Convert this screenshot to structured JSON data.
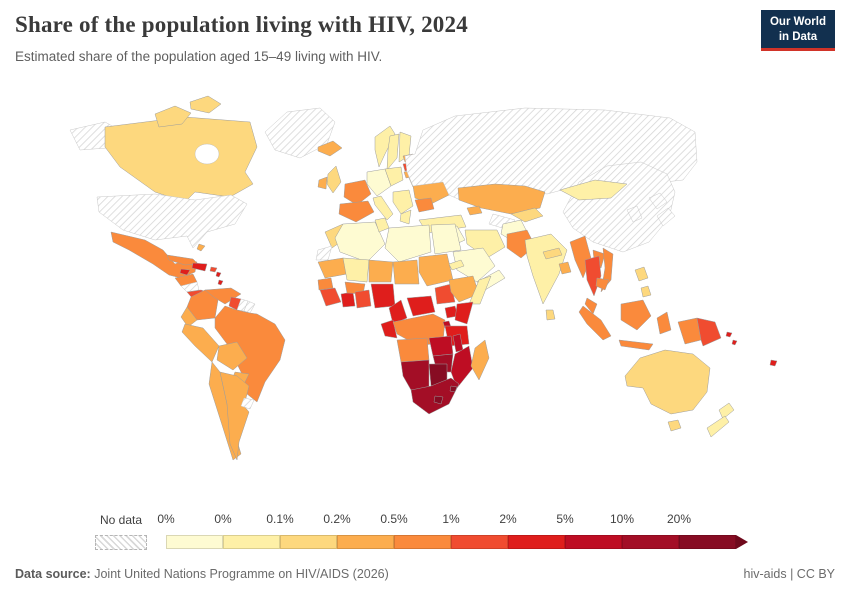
{
  "header": {
    "title": "Share of the population living with HIV, 2024",
    "subtitle": "Estimated share of the population aged 15–49 living with HIV.",
    "logo": {
      "line1": "Our World",
      "line2": "in Data",
      "bg_color": "#12304f",
      "accent_color": "#d13328"
    }
  },
  "chart_data": {
    "type": "choropleth-map",
    "title": "Share of the population living with HIV, 2024",
    "subtitle": "Estimated share of the population aged 15–49 living with HIV.",
    "year": 2024,
    "unit": "%",
    "legend": {
      "position": "bottom",
      "no_data_label": "No data",
      "edge_labels": [
        "0%",
        "0%",
        "0.1%",
        "0.2%",
        "0.5%",
        "1%",
        "2%",
        "5%",
        "10%",
        "20%"
      ],
      "open_ended_upper": true,
      "colors": [
        "#fefbd2",
        "#fef0a7",
        "#fdd87e",
        "#fcad4e",
        "#fa8a3c",
        "#f04c30",
        "#df1e1c",
        "#be0d23",
        "#a30e26",
        "#870c23"
      ],
      "arrow_color": "#6f091c",
      "no_data_fill": "diagonal gray hatch on white"
    },
    "bin_ranges": [
      "<0.05%",
      "0.05–0.1%",
      "0.1–0.2%",
      "0.2–0.5%",
      "0.5–1%",
      "1–2%",
      "2–5%",
      "5–10%",
      "10–20%",
      ">20%"
    ],
    "country_bins": {
      "greenland": -1,
      "alaska-united-states": -1,
      "canada": 2,
      "canadian-arctic-islands": 2,
      "united-states": -1,
      "mexico": 4,
      "guatemala-honduras": 4,
      "nicaragua": -1,
      "costa-rica-panama": 5,
      "cuba": 4,
      "bahamas": 3,
      "jamaica": 6,
      "hispaniola": 6,
      "puerto-rico": 5,
      "lesser-antilles": 6,
      "colombia": 4,
      "venezuela": 4,
      "guyana": 5,
      "suriname": -1,
      "french-guiana": -1,
      "brazil": 4,
      "ecuador": 3,
      "peru": 3,
      "bolivia": 3,
      "paraguay": 3,
      "chile": 3,
      "argentina": 3,
      "uruguay": -1,
      "iceland": 3,
      "ireland": 3,
      "united-kingdom": 2,
      "norway": 1,
      "sweden": 1,
      "finland": 1,
      "denmark": 1,
      "central-europe": 0,
      "poland": 1,
      "france": 4,
      "spain-portugal": 4,
      "italy": 1,
      "balkans": 1,
      "greece": 1,
      "estonia": 3,
      "latvia": 5,
      "lithuania": 3,
      "belarus": 1,
      "ukraine": 3,
      "romania": 4,
      "turkey": 1,
      "russia": -1,
      "kazakhstan": 3,
      "uzbekistan": 2,
      "turkmenistan": -1,
      "caucasus": 3,
      "syria-iraq": 0,
      "lebanon-israel": 5,
      "iran": 1,
      "saudi-arabia": 0,
      "yemen-oman": 0,
      "afghanistan": 0,
      "pakistan": 4,
      "india": 1,
      "nepal": 2,
      "bangladesh": 3,
      "sri-lanka": 2,
      "china": -1,
      "mongolia": 1,
      "korea": -1,
      "japan": -1,
      "japan-south": -1,
      "myanmar": 4,
      "thailand": 5,
      "laos": 4,
      "vietnam": 4,
      "cambodia": 4,
      "malaysia": 4,
      "sumatra-indonesia": 4,
      "java-indonesia": 4,
      "borneo": 4,
      "sulawesi-indonesia": 4,
      "philippines": 2,
      "west-papua-indonesia": 4,
      "papua-new-guinea": 5,
      "solomon-islands": 6,
      "fiji": 6,
      "australia": 2,
      "tasmania": 2,
      "new-zealand-north": 1,
      "new-zealand-south": 1,
      "morocco": 2,
      "western-sahara": -1,
      "algeria": 0,
      "tunisia": 1,
      "libya": 0,
      "egypt": 0,
      "mauritania": 3,
      "mali": 1,
      "niger": 3,
      "chad": 3,
      "sudan": 3,
      "eritrea": 1,
      "senegal": 4,
      "guinea": 5,
      "cote-divoire": 6,
      "burkina-faso": 4,
      "ghana-togo-benin": 5,
      "nigeria": 6,
      "cameroon": 6,
      "central-african-republic": 6,
      "south-sudan": 5,
      "ethiopia": 3,
      "somalia": 1,
      "dr-congo": 4,
      "congo-gabon": 6,
      "uganda": 6,
      "kenya": 6,
      "rwanda-burundi": 7,
      "tanzania": 6,
      "angola": 4,
      "zambia": 7,
      "malawi": 7,
      "mozambique": 7,
      "zimbabwe": 8,
      "namibia": 8,
      "botswana": 9,
      "south-africa": 8,
      "lesotho": 9,
      "eswatini": 9,
      "madagascar": 3
    }
  },
  "footer": {
    "source_label": "Data source:",
    "source_value": "Joint United Nations Programme on HIV/AIDS (2026)",
    "license_text": "hiv-aids | CC BY"
  }
}
